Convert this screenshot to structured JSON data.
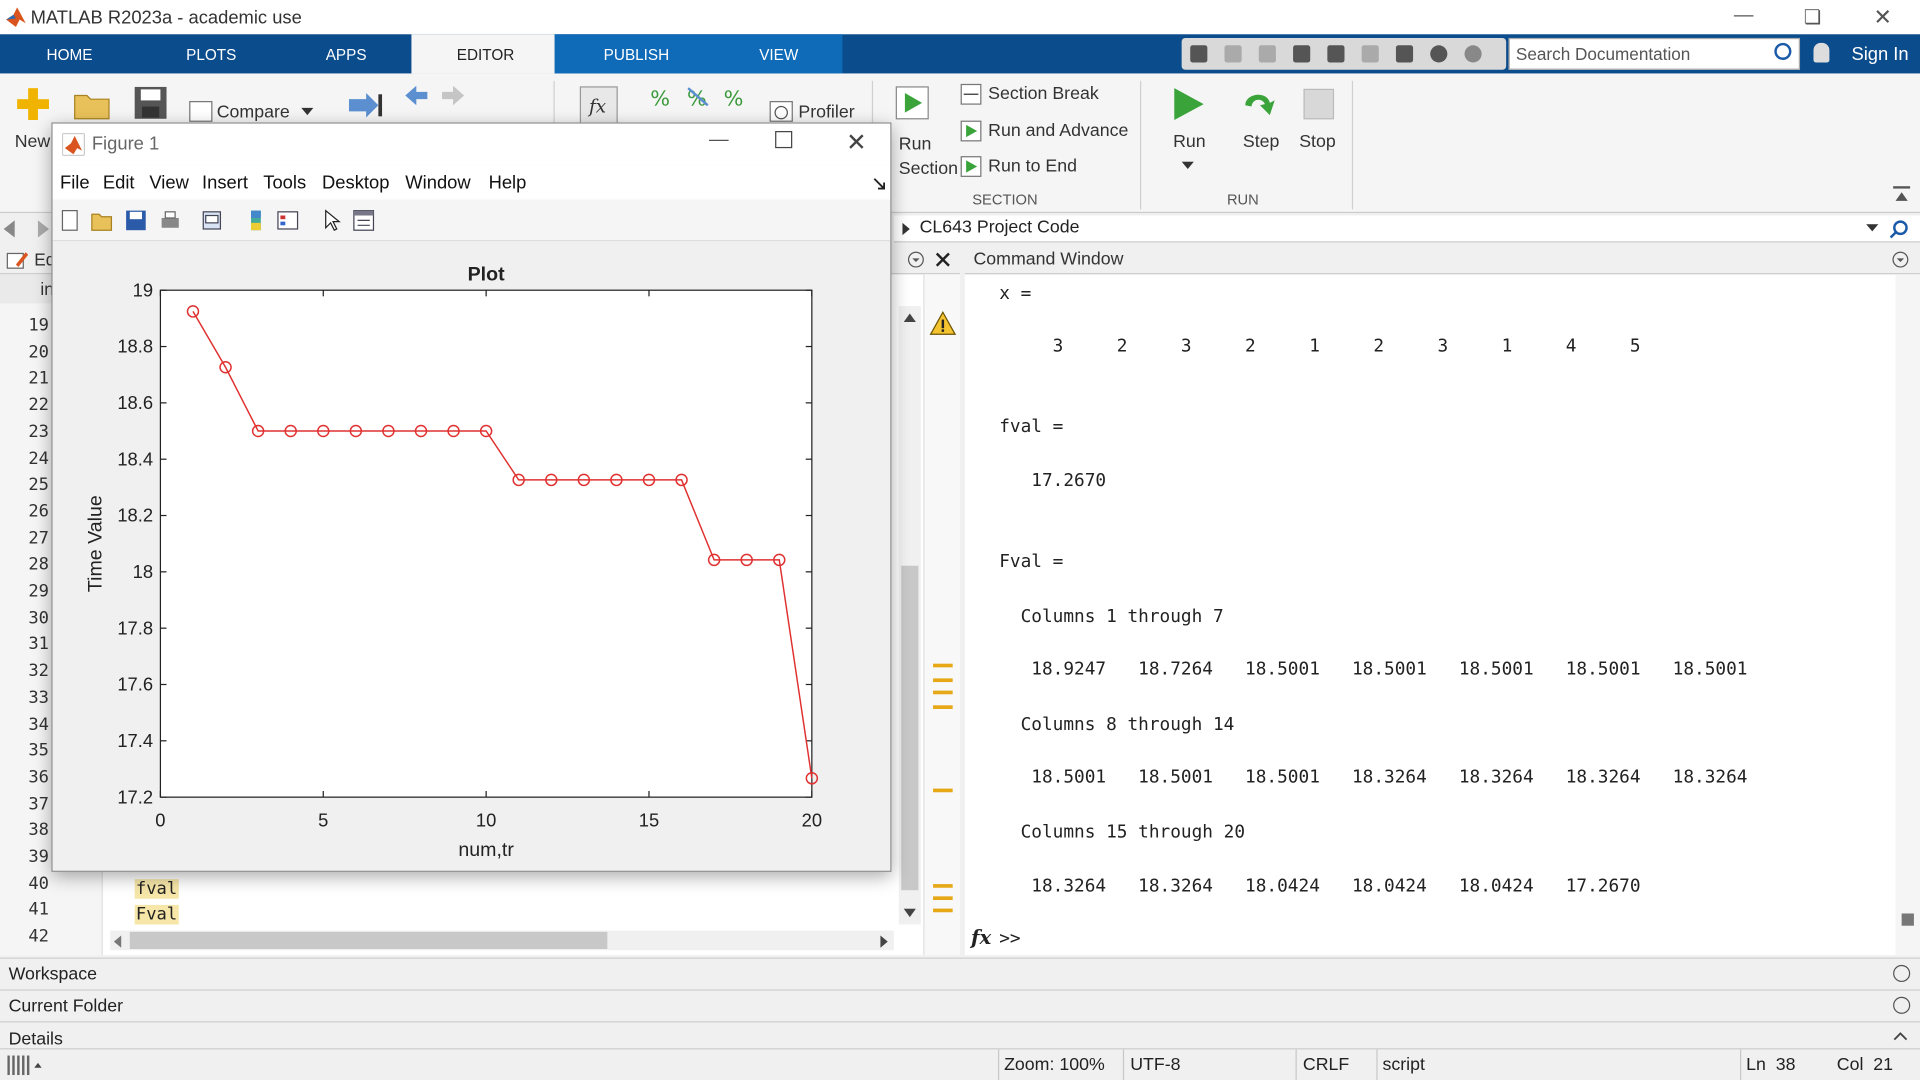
{
  "window": {
    "title": "MATLAB R2023a - academic use"
  },
  "tabs": [
    {
      "label": "HOME"
    },
    {
      "label": "PLOTS"
    },
    {
      "label": "APPS"
    },
    {
      "label": "EDITOR"
    },
    {
      "label": "PUBLISH"
    },
    {
      "label": "VIEW"
    }
  ],
  "search": {
    "placeholder": "Search Documentation"
  },
  "signin": "Sign In",
  "ribbon": {
    "new": "New",
    "compare": "Compare",
    "profiler": "Profiler",
    "run_section": "Run Section",
    "section_break": "Section Break",
    "run_advance": "Run and Advance",
    "run_to_end": "Run to End",
    "section_group": "SECTION",
    "run": "Run",
    "step": "Step",
    "stop": "Stop",
    "run_group": "RUN"
  },
  "address": {
    "path": "CL643 Project Code"
  },
  "editor": {
    "tab_partial": "Ed",
    "tab2_partial": "in",
    "lines": [
      "19",
      "20",
      "21",
      "22",
      "23",
      "24",
      "25",
      "26",
      "27",
      "28",
      "29",
      "30",
      "31",
      "32",
      "33",
      "34",
      "35",
      "36",
      "37",
      "38",
      "39",
      "40",
      "41",
      "42"
    ],
    "code": {
      "line41": "fval",
      "line42": "Fval"
    }
  },
  "command_window": {
    "title": "Command Window",
    "x_label": "x =",
    "x_values": "     3     2     3     2     1     2     3     1     4     5",
    "fval_label": "fval =",
    "fval_value": "   17.2670",
    "Fval_label": "Fval =",
    "cols1": "  Columns 1 through 7",
    "row1": "   18.9247   18.7264   18.5001   18.5001   18.5001   18.5001   18.5001",
    "cols2": "  Columns 8 through 14",
    "row2": "   18.5001   18.5001   18.5001   18.3264   18.3264   18.3264   18.3264",
    "cols3": "  Columns 15 through 20",
    "row3": "   18.3264   18.3264   18.0424   18.0424   18.0424   17.2670",
    "prompt": ">>"
  },
  "panels": {
    "workspace": "Workspace",
    "current_folder": "Current Folder",
    "details": "Details"
  },
  "status": {
    "zoom": "Zoom: 100%",
    "encoding": "UTF-8",
    "eol": "CRLF",
    "type": "script",
    "ln": "Ln  38",
    "col": "Col  21"
  },
  "figure": {
    "title": "Figure 1",
    "menu": [
      "File",
      "Edit",
      "View",
      "Insert",
      "Tools",
      "Desktop",
      "Window",
      "Help"
    ]
  },
  "chart_data": {
    "type": "line",
    "title": "Plot",
    "xlabel": "num,tr",
    "ylabel": "Time Value",
    "xlim": [
      0,
      20
    ],
    "ylim": [
      17.2,
      19
    ],
    "xticks": [
      0,
      5,
      10,
      15,
      20
    ],
    "yticks": [
      17.2,
      17.4,
      17.6,
      17.8,
      18,
      18.2,
      18.4,
      18.6,
      18.8,
      19
    ],
    "grid": false,
    "color": "#e03030",
    "marker": "circle",
    "x": [
      1,
      2,
      3,
      4,
      5,
      6,
      7,
      8,
      9,
      10,
      11,
      12,
      13,
      14,
      15,
      16,
      17,
      18,
      19,
      20
    ],
    "y": [
      18.9247,
      18.7264,
      18.5001,
      18.5001,
      18.5001,
      18.5001,
      18.5001,
      18.5001,
      18.5001,
      18.5001,
      18.3264,
      18.3264,
      18.3264,
      18.3264,
      18.3264,
      18.3264,
      18.0424,
      18.0424,
      18.0424,
      17.267
    ]
  }
}
